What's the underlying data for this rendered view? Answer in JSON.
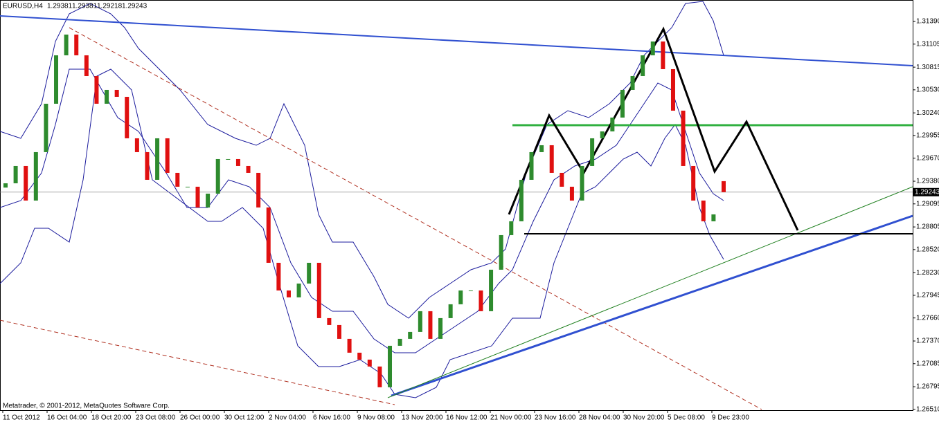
{
  "chart_data": {
    "type": "candlestick",
    "symbol": "EURUSD,H4",
    "quote": [
      1.29381,
      1.29381,
      1.29218,
      1.29243
    ],
    "footer": "Metatrader, © 2001-2012, MetaQuotes Software Corp.",
    "x_labels": [
      "11 Oct 2012",
      "16 Oct 04:00",
      "18 Oct 20:00",
      "23 Oct 08:00",
      "26 Oct 00:00",
      "30 Oct 12:00",
      "2 Nov 04:00",
      "6 Nov 16:00",
      "9 Nov 08:00",
      "13 Nov 20:00",
      "16 Nov 12:00",
      "21 Nov 00:00",
      "23 Nov 16:00",
      "28 Nov 04:00",
      "30 Nov 20:00",
      "5 Dec 08:00",
      "9 Dec 23:00"
    ],
    "open": [
      1.293,
      1.29354,
      1.29572,
      1.29137,
      1.29746,
      1.30355,
      1.30964,
      1.31225,
      1.30964,
      1.30703,
      1.30355,
      1.30529,
      1.30442,
      1.2992,
      1.29746,
      1.29398,
      1.2992,
      1.29485,
      1.29311,
      1.29311,
      1.2905,
      1.29224,
      1.29659,
      1.29659,
      1.29572,
      1.29485,
      1.2905,
      1.28354,
      1.28006,
      1.27919,
      1.28093,
      1.28354,
      1.27658,
      1.27571,
      1.27397,
      1.27223,
      1.27136,
      1.27049,
      1.26788,
      1.2731,
      1.27397,
      1.27484,
      1.27745,
      1.27397,
      1.27658,
      1.27832,
      1.28006,
      1.28006,
      1.27745,
      1.28267,
      1.28702,
      1.28876,
      1.29398,
      1.29746,
      1.29833,
      1.29485,
      1.29311,
      1.29137,
      1.29572,
      1.2992,
      1.30007,
      1.30181,
      1.30529,
      1.30703,
      1.30964,
      1.31138,
      1.3079,
      1.30268,
      1.29572,
      1.29137,
      1.28876,
      1.29381
    ],
    "close": [
      1.29354,
      1.29572,
      1.29137,
      1.29746,
      1.30355,
      1.30964,
      1.31225,
      1.30964,
      1.30703,
      1.30355,
      1.30529,
      1.30442,
      1.2992,
      1.29746,
      1.29398,
      1.2992,
      1.29485,
      1.29311,
      1.29311,
      1.2905,
      1.29224,
      1.29659,
      1.29659,
      1.29572,
      1.29485,
      1.2905,
      1.28354,
      1.28006,
      1.27919,
      1.28093,
      1.28354,
      1.27658,
      1.27571,
      1.27397,
      1.27223,
      1.27136,
      1.27049,
      1.26788,
      1.2731,
      1.27397,
      1.27484,
      1.27745,
      1.27397,
      1.27658,
      1.27832,
      1.28006,
      1.28006,
      1.27745,
      1.28267,
      1.28702,
      1.28876,
      1.29398,
      1.29746,
      1.29833,
      1.29485,
      1.29311,
      1.29137,
      1.29572,
      1.2992,
      1.30007,
      1.30181,
      1.30529,
      1.30703,
      1.30964,
      1.31138,
      1.3079,
      1.30268,
      1.29572,
      1.29137,
      1.28876,
      1.28963,
      1.29243
    ],
    "up_color": "#2e8b2e",
    "down_color": "#e01010",
    "ylim": [
      1.265,
      1.3166
    ],
    "yticks": [
      {
        "value": 1.3139,
        "label": "1.31390"
      },
      1.31105,
      1.30815,
      {
        "value": 1.3053,
        "label": "1.30530"
      },
      {
        "value": 1.3024,
        "label": "1.30240"
      },
      1.29955,
      {
        "value": 1.2967,
        "label": "1.29670"
      },
      {
        "value": 1.2938,
        "label": "1.29380"
      },
      1.29095,
      1.28805,
      {
        "value": 1.2852,
        "label": "1.28520"
      },
      {
        "value": 1.2823,
        "label": "1.28230"
      },
      1.27945,
      {
        "value": 1.2766,
        "label": "1.27660"
      },
      {
        "value": 1.2737,
        "label": "1.27370"
      },
      1.27085,
      1.26795,
      {
        "value": 1.2651,
        "label": "1.26510"
      }
    ]
  }
}
